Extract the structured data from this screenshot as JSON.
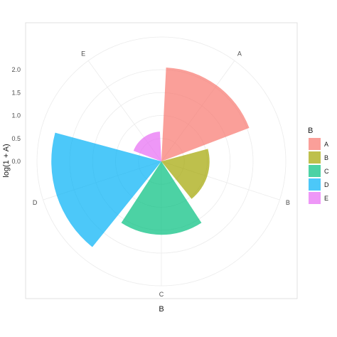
{
  "chart_data": {
    "type": "polar-bar",
    "categories": [
      "A",
      "B",
      "C",
      "D",
      "E"
    ],
    "values": [
      2.05,
      1.05,
      1.6,
      2.4,
      0.65
    ],
    "colors": [
      "#F8766D",
      "#A3A500",
      "#00BF7D",
      "#00B0F6",
      "#E76BF3"
    ],
    "ylabel": "log(1 + A)",
    "xlabel": "B",
    "yticks": [
      "0.0",
      "0.5",
      "1.0",
      "1.5",
      "2.0"
    ],
    "ytick_values": [
      0,
      0.5,
      1.0,
      1.5,
      2.0
    ],
    "grid": true,
    "legend": {
      "title": "B",
      "position": "right",
      "items": [
        "A",
        "B",
        "C",
        "D",
        "E"
      ]
    }
  }
}
